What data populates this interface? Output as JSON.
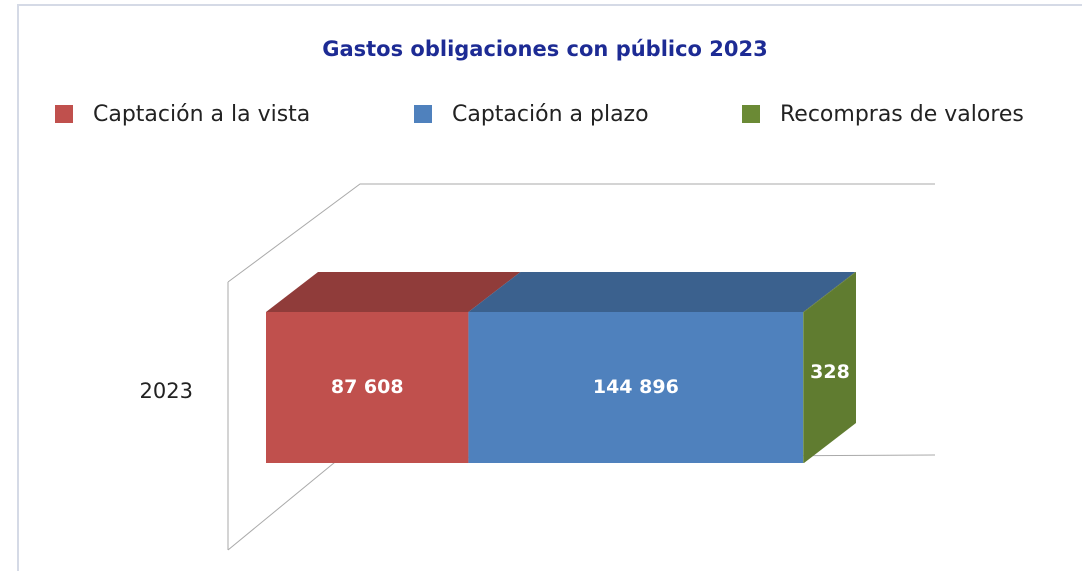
{
  "chart_data": {
    "type": "bar3d_stacked_horizontal",
    "title": "Gastos obligaciones con público 2023",
    "categories": [
      "2023"
    ],
    "series": [
      {
        "name": "Captación a la vista",
        "color": "#c0504d",
        "values": [
          87608
        ],
        "value_labels": [
          "87 608"
        ]
      },
      {
        "name": "Captación a plazo",
        "color": "#4f81bd",
        "values": [
          144896
        ],
        "value_labels": [
          "144 896"
        ]
      },
      {
        "name": "Recompras de valores",
        "color": "#6b8a35",
        "values": [
          328
        ],
        "value_labels": [
          "328"
        ]
      }
    ]
  }
}
